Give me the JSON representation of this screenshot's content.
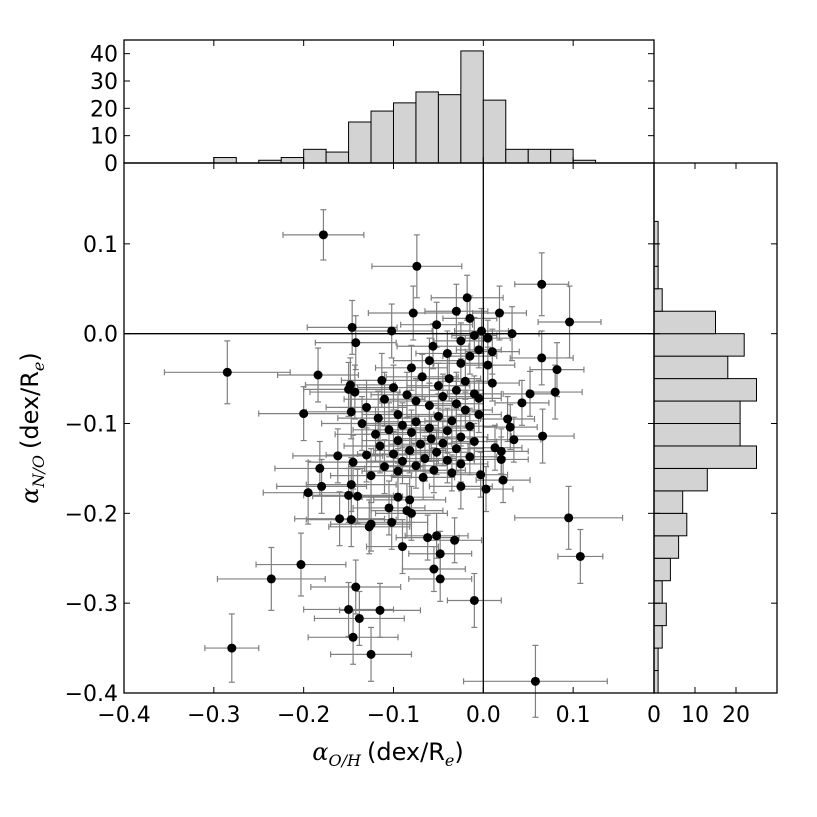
{
  "chart_data": {
    "type": "scatter",
    "title": "",
    "xlabel": {
      "symbol": "α",
      "subscript": "O/H",
      "unit_prefix": "(dex/R",
      "unit_subscript": "e",
      "unit_suffix": ")"
    },
    "ylabel": {
      "symbol": "α",
      "subscript": "N/O",
      "unit_prefix": "(dex/R",
      "unit_subscript": "e",
      "unit_suffix": ")"
    },
    "xlim": [
      -0.4,
      0.19
    ],
    "ylim": [
      -0.4,
      0.19
    ],
    "x_ticks": [
      -0.4,
      -0.3,
      -0.2,
      -0.1,
      0.0,
      0.1
    ],
    "x_tick_labels": [
      "−0.4",
      "−0.3",
      "−0.2",
      "−0.1",
      "0.0",
      "0.1"
    ],
    "y_ticks": [
      -0.4,
      -0.3,
      -0.2,
      -0.1,
      0.0,
      0.1
    ],
    "y_tick_labels": [
      "−0.4",
      "−0.3",
      "−0.2",
      "−0.1",
      "0.0",
      "0.1"
    ],
    "reference_lines": {
      "x": 0,
      "y": 0
    },
    "points": [
      {
        "x": -0.178,
        "y": 0.11,
        "xerr": 0.045,
        "yerr": 0.028
      },
      {
        "x": -0.074,
        "y": 0.075,
        "xerr": 0.05,
        "yerr": 0.035
      },
      {
        "x": 0.065,
        "y": 0.055,
        "xerr": 0.03,
        "yerr": 0.035
      },
      {
        "x": -0.018,
        "y": 0.04,
        "xerr": 0.04,
        "yerr": 0.025
      },
      {
        "x": -0.078,
        "y": 0.023,
        "xerr": 0.05,
        "yerr": 0.03
      },
      {
        "x": -0.03,
        "y": 0.025,
        "xerr": 0.035,
        "yerr": 0.03
      },
      {
        "x": 0.018,
        "y": 0.023,
        "xerr": 0.03,
        "yerr": 0.03
      },
      {
        "x": -0.015,
        "y": 0.017,
        "xerr": 0.03,
        "yerr": 0.025
      },
      {
        "x": 0.096,
        "y": 0.013,
        "xerr": 0.035,
        "yerr": 0.04
      },
      {
        "x": -0.052,
        "y": 0.01,
        "xerr": 0.04,
        "yerr": 0.025
      },
      {
        "x": -0.146,
        "y": 0.007,
        "xerr": 0.05,
        "yerr": 0.03
      },
      {
        "x": -0.102,
        "y": 0.003,
        "xerr": 0.045,
        "yerr": 0.03
      },
      {
        "x": -0.002,
        "y": 0.003,
        "xerr": 0.03,
        "yerr": 0.025
      },
      {
        "x": 0.032,
        "y": 0.0,
        "xerr": 0.03,
        "yerr": 0.03
      },
      {
        "x": -0.01,
        "y": -0.002,
        "xerr": 0.025,
        "yerr": 0.02
      },
      {
        "x": 0.005,
        "y": -0.005,
        "xerr": 0.025,
        "yerr": 0.02
      },
      {
        "x": -0.025,
        "y": -0.008,
        "xerr": 0.03,
        "yerr": 0.02
      },
      {
        "x": -0.142,
        "y": -0.01,
        "xerr": 0.045,
        "yerr": 0.03
      },
      {
        "x": -0.056,
        "y": -0.014,
        "xerr": 0.04,
        "yerr": 0.025
      },
      {
        "x": -0.005,
        "y": -0.018,
        "xerr": 0.025,
        "yerr": 0.02
      },
      {
        "x": 0.01,
        "y": -0.02,
        "xerr": 0.03,
        "yerr": 0.025
      },
      {
        "x": -0.04,
        "y": -0.022,
        "xerr": 0.035,
        "yerr": 0.025
      },
      {
        "x": -0.015,
        "y": -0.025,
        "xerr": 0.03,
        "yerr": 0.02
      },
      {
        "x": 0.065,
        "y": -0.027,
        "xerr": 0.035,
        "yerr": 0.03
      },
      {
        "x": -0.06,
        "y": -0.03,
        "xerr": 0.04,
        "yerr": 0.025
      },
      {
        "x": -0.025,
        "y": -0.033,
        "xerr": 0.03,
        "yerr": 0.025
      },
      {
        "x": 0.005,
        "y": -0.035,
        "xerr": 0.03,
        "yerr": 0.02
      },
      {
        "x": -0.08,
        "y": -0.038,
        "xerr": 0.04,
        "yerr": 0.025
      },
      {
        "x": 0.082,
        "y": -0.04,
        "xerr": 0.03,
        "yerr": 0.03
      },
      {
        "x": -0.285,
        "y": -0.043,
        "xerr": 0.07,
        "yerr": 0.035
      },
      {
        "x": -0.184,
        "y": -0.046,
        "xerr": 0.045,
        "yerr": 0.03
      },
      {
        "x": -0.068,
        "y": -0.048,
        "xerr": 0.04,
        "yerr": 0.025
      },
      {
        "x": -0.038,
        "y": -0.05,
        "xerr": 0.035,
        "yerr": 0.025
      },
      {
        "x": -0.113,
        "y": -0.052,
        "xerr": 0.045,
        "yerr": 0.03
      },
      {
        "x": -0.02,
        "y": -0.053,
        "xerr": 0.03,
        "yerr": 0.02
      },
      {
        "x": 0.01,
        "y": -0.055,
        "xerr": 0.03,
        "yerr": 0.02
      },
      {
        "x": -0.148,
        "y": -0.057,
        "xerr": 0.05,
        "yerr": 0.03
      },
      {
        "x": -0.05,
        "y": -0.058,
        "xerr": 0.035,
        "yerr": 0.025
      },
      {
        "x": -0.1,
        "y": -0.06,
        "xerr": 0.04,
        "yerr": 0.025
      },
      {
        "x": -0.15,
        "y": -0.062,
        "xerr": 0.05,
        "yerr": 0.03
      },
      {
        "x": -0.03,
        "y": -0.063,
        "xerr": 0.03,
        "yerr": 0.02
      },
      {
        "x": -0.143,
        "y": -0.065,
        "xerr": 0.05,
        "yerr": 0.03
      },
      {
        "x": 0.08,
        "y": -0.065,
        "xerr": 0.03,
        "yerr": 0.03
      },
      {
        "x": -0.01,
        "y": -0.067,
        "xerr": 0.03,
        "yerr": 0.02
      },
      {
        "x": 0.052,
        "y": -0.067,
        "xerr": 0.03,
        "yerr": 0.025
      },
      {
        "x": -0.085,
        "y": -0.068,
        "xerr": 0.04,
        "yerr": 0.025
      },
      {
        "x": -0.045,
        "y": -0.07,
        "xerr": 0.035,
        "yerr": 0.025
      },
      {
        "x": -0.005,
        "y": -0.072,
        "xerr": 0.025,
        "yerr": 0.02
      },
      {
        "x": -0.11,
        "y": -0.073,
        "xerr": 0.045,
        "yerr": 0.03
      },
      {
        "x": -0.075,
        "y": -0.075,
        "xerr": 0.04,
        "yerr": 0.025
      },
      {
        "x": 0.043,
        "y": -0.077,
        "xerr": 0.03,
        "yerr": 0.025
      },
      {
        "x": -0.03,
        "y": -0.078,
        "xerr": 0.03,
        "yerr": 0.025
      },
      {
        "x": -0.06,
        "y": -0.08,
        "xerr": 0.035,
        "yerr": 0.025
      },
      {
        "x": -0.13,
        "y": -0.082,
        "xerr": 0.045,
        "yerr": 0.03
      },
      {
        "x": -0.02,
        "y": -0.085,
        "xerr": 0.03,
        "yerr": 0.02
      },
      {
        "x": -0.147,
        "y": -0.087,
        "xerr": 0.05,
        "yerr": 0.03
      },
      {
        "x": -0.2,
        "y": -0.089,
        "xerr": 0.05,
        "yerr": 0.03
      },
      {
        "x": -0.095,
        "y": -0.09,
        "xerr": 0.04,
        "yerr": 0.025
      },
      {
        "x": -0.005,
        "y": -0.09,
        "xerr": 0.025,
        "yerr": 0.02
      },
      {
        "x": -0.05,
        "y": -0.092,
        "xerr": 0.035,
        "yerr": 0.025
      },
      {
        "x": -0.117,
        "y": -0.094,
        "xerr": 0.045,
        "yerr": 0.03
      },
      {
        "x": 0.027,
        "y": -0.095,
        "xerr": 0.03,
        "yerr": 0.025
      },
      {
        "x": -0.035,
        "y": -0.097,
        "xerr": 0.03,
        "yerr": 0.025
      },
      {
        "x": -0.075,
        "y": -0.098,
        "xerr": 0.04,
        "yerr": 0.025
      },
      {
        "x": -0.135,
        "y": -0.1,
        "xerr": 0.045,
        "yerr": 0.03
      },
      {
        "x": -0.09,
        "y": -0.102,
        "xerr": 0.04,
        "yerr": 0.025
      },
      {
        "x": -0.015,
        "y": -0.103,
        "xerr": 0.03,
        "yerr": 0.02
      },
      {
        "x": 0.03,
        "y": -0.104,
        "xerr": 0.03,
        "yerr": 0.025
      },
      {
        "x": -0.06,
        "y": -0.105,
        "xerr": 0.035,
        "yerr": 0.025
      },
      {
        "x": -0.105,
        "y": -0.107,
        "xerr": 0.04,
        "yerr": 0.03
      },
      {
        "x": -0.04,
        "y": -0.108,
        "xerr": 0.03,
        "yerr": 0.025
      },
      {
        "x": -0.08,
        "y": -0.11,
        "xerr": 0.04,
        "yerr": 0.025
      },
      {
        "x": -0.12,
        "y": -0.112,
        "xerr": 0.045,
        "yerr": 0.03
      },
      {
        "x": 0.066,
        "y": -0.114,
        "xerr": 0.035,
        "yerr": 0.03
      },
      {
        "x": -0.025,
        "y": -0.115,
        "xerr": 0.03,
        "yerr": 0.025
      },
      {
        "x": -0.058,
        "y": -0.117,
        "xerr": 0.035,
        "yerr": 0.025
      },
      {
        "x": 0.034,
        "y": -0.118,
        "xerr": 0.03,
        "yerr": 0.025
      },
      {
        "x": -0.095,
        "y": -0.119,
        "xerr": 0.04,
        "yerr": 0.025
      },
      {
        "x": -0.01,
        "y": -0.12,
        "xerr": 0.025,
        "yerr": 0.02
      },
      {
        "x": -0.045,
        "y": -0.122,
        "xerr": 0.035,
        "yerr": 0.025
      },
      {
        "x": -0.07,
        "y": -0.123,
        "xerr": 0.035,
        "yerr": 0.025
      },
      {
        "x": -0.115,
        "y": -0.125,
        "xerr": 0.04,
        "yerr": 0.03
      },
      {
        "x": 0.013,
        "y": -0.127,
        "xerr": 0.03,
        "yerr": 0.025
      },
      {
        "x": -0.03,
        "y": -0.128,
        "xerr": 0.03,
        "yerr": 0.025
      },
      {
        "x": -0.082,
        "y": -0.13,
        "xerr": 0.04,
        "yerr": 0.025
      },
      {
        "x": 0.02,
        "y": -0.131,
        "xerr": 0.03,
        "yerr": 0.025
      },
      {
        "x": -0.052,
        "y": -0.132,
        "xerr": 0.035,
        "yerr": 0.025
      },
      {
        "x": -0.1,
        "y": -0.134,
        "xerr": 0.04,
        "yerr": 0.025
      },
      {
        "x": -0.13,
        "y": -0.135,
        "xerr": 0.045,
        "yerr": 0.03
      },
      {
        "x": -0.162,
        "y": -0.136,
        "xerr": 0.05,
        "yerr": 0.03
      },
      {
        "x": -0.015,
        "y": -0.137,
        "xerr": 0.03,
        "yerr": 0.02
      },
      {
        "x": -0.065,
        "y": -0.139,
        "xerr": 0.035,
        "yerr": 0.025
      },
      {
        "x": 0.02,
        "y": -0.14,
        "xerr": 0.03,
        "yerr": 0.025
      },
      {
        "x": -0.04,
        "y": -0.141,
        "xerr": 0.03,
        "yerr": 0.025
      },
      {
        "x": -0.09,
        "y": -0.142,
        "xerr": 0.04,
        "yerr": 0.025
      },
      {
        "x": -0.145,
        "y": -0.143,
        "xerr": 0.05,
        "yerr": 0.03
      },
      {
        "x": -0.025,
        "y": -0.145,
        "xerr": 0.03,
        "yerr": 0.02
      },
      {
        "x": -0.075,
        "y": -0.147,
        "xerr": 0.035,
        "yerr": 0.025
      },
      {
        "x": -0.11,
        "y": -0.148,
        "xerr": 0.04,
        "yerr": 0.03
      },
      {
        "x": -0.182,
        "y": -0.15,
        "xerr": 0.05,
        "yerr": 0.03
      },
      {
        "x": -0.055,
        "y": -0.152,
        "xerr": 0.035,
        "yerr": 0.025
      },
      {
        "x": -0.095,
        "y": -0.153,
        "xerr": 0.04,
        "yerr": 0.025
      },
      {
        "x": -0.035,
        "y": -0.155,
        "xerr": 0.03,
        "yerr": 0.02
      },
      {
        "x": -0.003,
        "y": -0.157,
        "xerr": 0.03,
        "yerr": 0.025
      },
      {
        "x": -0.125,
        "y": -0.158,
        "xerr": 0.045,
        "yerr": 0.03
      },
      {
        "x": -0.067,
        "y": -0.16,
        "xerr": 0.035,
        "yerr": 0.025
      },
      {
        "x": 0.022,
        "y": -0.163,
        "xerr": 0.03,
        "yerr": 0.025
      },
      {
        "x": -0.147,
        "y": -0.168,
        "xerr": 0.05,
        "yerr": 0.03
      },
      {
        "x": -0.18,
        "y": -0.17,
        "xerr": 0.05,
        "yerr": 0.03
      },
      {
        "x": -0.025,
        "y": -0.17,
        "xerr": 0.035,
        "yerr": 0.025
      },
      {
        "x": 0.003,
        "y": -0.173,
        "xerr": 0.03,
        "yerr": 0.025
      },
      {
        "x": -0.195,
        "y": -0.177,
        "xerr": 0.05,
        "yerr": 0.035
      },
      {
        "x": -0.15,
        "y": -0.18,
        "xerr": 0.05,
        "yerr": 0.03
      },
      {
        "x": -0.14,
        "y": -0.181,
        "xerr": 0.05,
        "yerr": 0.03
      },
      {
        "x": -0.095,
        "y": -0.182,
        "xerr": 0.04,
        "yerr": 0.025
      },
      {
        "x": -0.082,
        "y": -0.185,
        "xerr": 0.04,
        "yerr": 0.025
      },
      {
        "x": -0.105,
        "y": -0.194,
        "xerr": 0.04,
        "yerr": 0.03
      },
      {
        "x": -0.085,
        "y": -0.197,
        "xerr": 0.04,
        "yerr": 0.03
      },
      {
        "x": -0.08,
        "y": -0.2,
        "xerr": 0.04,
        "yerr": 0.03
      },
      {
        "x": 0.095,
        "y": -0.205,
        "xerr": 0.06,
        "yerr": 0.035
      },
      {
        "x": -0.16,
        "y": -0.206,
        "xerr": 0.05,
        "yerr": 0.03
      },
      {
        "x": -0.147,
        "y": -0.207,
        "xerr": 0.05,
        "yerr": 0.03
      },
      {
        "x": -0.102,
        "y": -0.21,
        "xerr": 0.04,
        "yerr": 0.03
      },
      {
        "x": -0.125,
        "y": -0.212,
        "xerr": 0.045,
        "yerr": 0.03
      },
      {
        "x": -0.127,
        "y": -0.215,
        "xerr": 0.045,
        "yerr": 0.03
      },
      {
        "x": -0.052,
        "y": -0.225,
        "xerr": 0.035,
        "yerr": 0.025
      },
      {
        "x": -0.062,
        "y": -0.227,
        "xerr": 0.035,
        "yerr": 0.025
      },
      {
        "x": -0.032,
        "y": -0.23,
        "xerr": 0.03,
        "yerr": 0.025
      },
      {
        "x": -0.09,
        "y": -0.237,
        "xerr": 0.04,
        "yerr": 0.03
      },
      {
        "x": -0.048,
        "y": -0.245,
        "xerr": 0.035,
        "yerr": 0.025
      },
      {
        "x": 0.108,
        "y": -0.248,
        "xerr": 0.025,
        "yerr": 0.03
      },
      {
        "x": -0.203,
        "y": -0.257,
        "xerr": 0.05,
        "yerr": 0.035
      },
      {
        "x": -0.055,
        "y": -0.262,
        "xerr": 0.035,
        "yerr": 0.025
      },
      {
        "x": -0.236,
        "y": -0.273,
        "xerr": 0.06,
        "yerr": 0.035
      },
      {
        "x": -0.048,
        "y": -0.273,
        "xerr": 0.035,
        "yerr": 0.025
      },
      {
        "x": -0.142,
        "y": -0.282,
        "xerr": 0.05,
        "yerr": 0.03
      },
      {
        "x": -0.01,
        "y": -0.297,
        "xerr": 0.03,
        "yerr": 0.03
      },
      {
        "x": -0.15,
        "y": -0.307,
        "xerr": 0.05,
        "yerr": 0.03
      },
      {
        "x": -0.115,
        "y": -0.308,
        "xerr": 0.045,
        "yerr": 0.03
      },
      {
        "x": -0.138,
        "y": -0.317,
        "xerr": 0.05,
        "yerr": 0.03
      },
      {
        "x": -0.145,
        "y": -0.338,
        "xerr": 0.05,
        "yerr": 0.03
      },
      {
        "x": -0.28,
        "y": -0.35,
        "xerr": 0.03,
        "yerr": 0.038
      },
      {
        "x": -0.125,
        "y": -0.357,
        "xerr": 0.045,
        "yerr": 0.03
      },
      {
        "x": 0.058,
        "y": -0.387,
        "xerr": 0.08,
        "yerr": 0.04
      }
    ],
    "top_histogram": {
      "bin_edges": [
        -0.4,
        -0.375,
        -0.35,
        -0.325,
        -0.3,
        -0.275,
        -0.25,
        -0.225,
        -0.2,
        -0.175,
        -0.15,
        -0.125,
        -0.1,
        -0.075,
        -0.05,
        -0.025,
        0.0,
        0.025,
        0.05,
        0.075,
        0.1,
        0.125,
        0.15,
        0.175
      ],
      "counts": [
        0,
        0,
        0,
        0,
        2,
        0,
        1,
        2,
        5,
        4,
        15,
        19,
        22,
        26,
        25,
        41,
        23,
        5,
        5,
        5,
        1,
        0,
        0
      ],
      "ylim": [
        0,
        45
      ],
      "ticks": [
        0,
        10,
        20,
        30,
        40
      ],
      "tick_labels": [
        "0",
        "10",
        "20",
        "30",
        "40"
      ]
    },
    "right_histogram": {
      "bin_edges": [
        -0.4,
        -0.375,
        -0.35,
        -0.325,
        -0.3,
        -0.275,
        -0.25,
        -0.225,
        -0.2,
        -0.175,
        -0.15,
        -0.125,
        -0.1,
        -0.075,
        -0.05,
        -0.025,
        0.0,
        0.025,
        0.05,
        0.075,
        0.1,
        0.125,
        0.15,
        0.175
      ],
      "counts": [
        1,
        1,
        2,
        3,
        2,
        4,
        6,
        8,
        7,
        13,
        25,
        21,
        21,
        25,
        18,
        22,
        15,
        2,
        1,
        1,
        1,
        0,
        0
      ],
      "xlim": [
        0,
        30
      ],
      "ticks": [
        0,
        10,
        20
      ],
      "tick_labels": [
        "0",
        "10",
        "20"
      ]
    },
    "colors": {
      "marker": "#000000",
      "errorbar": "#808080",
      "hist_fill": "#d3d3d3",
      "hist_edge": "#000000"
    },
    "grid": false
  }
}
